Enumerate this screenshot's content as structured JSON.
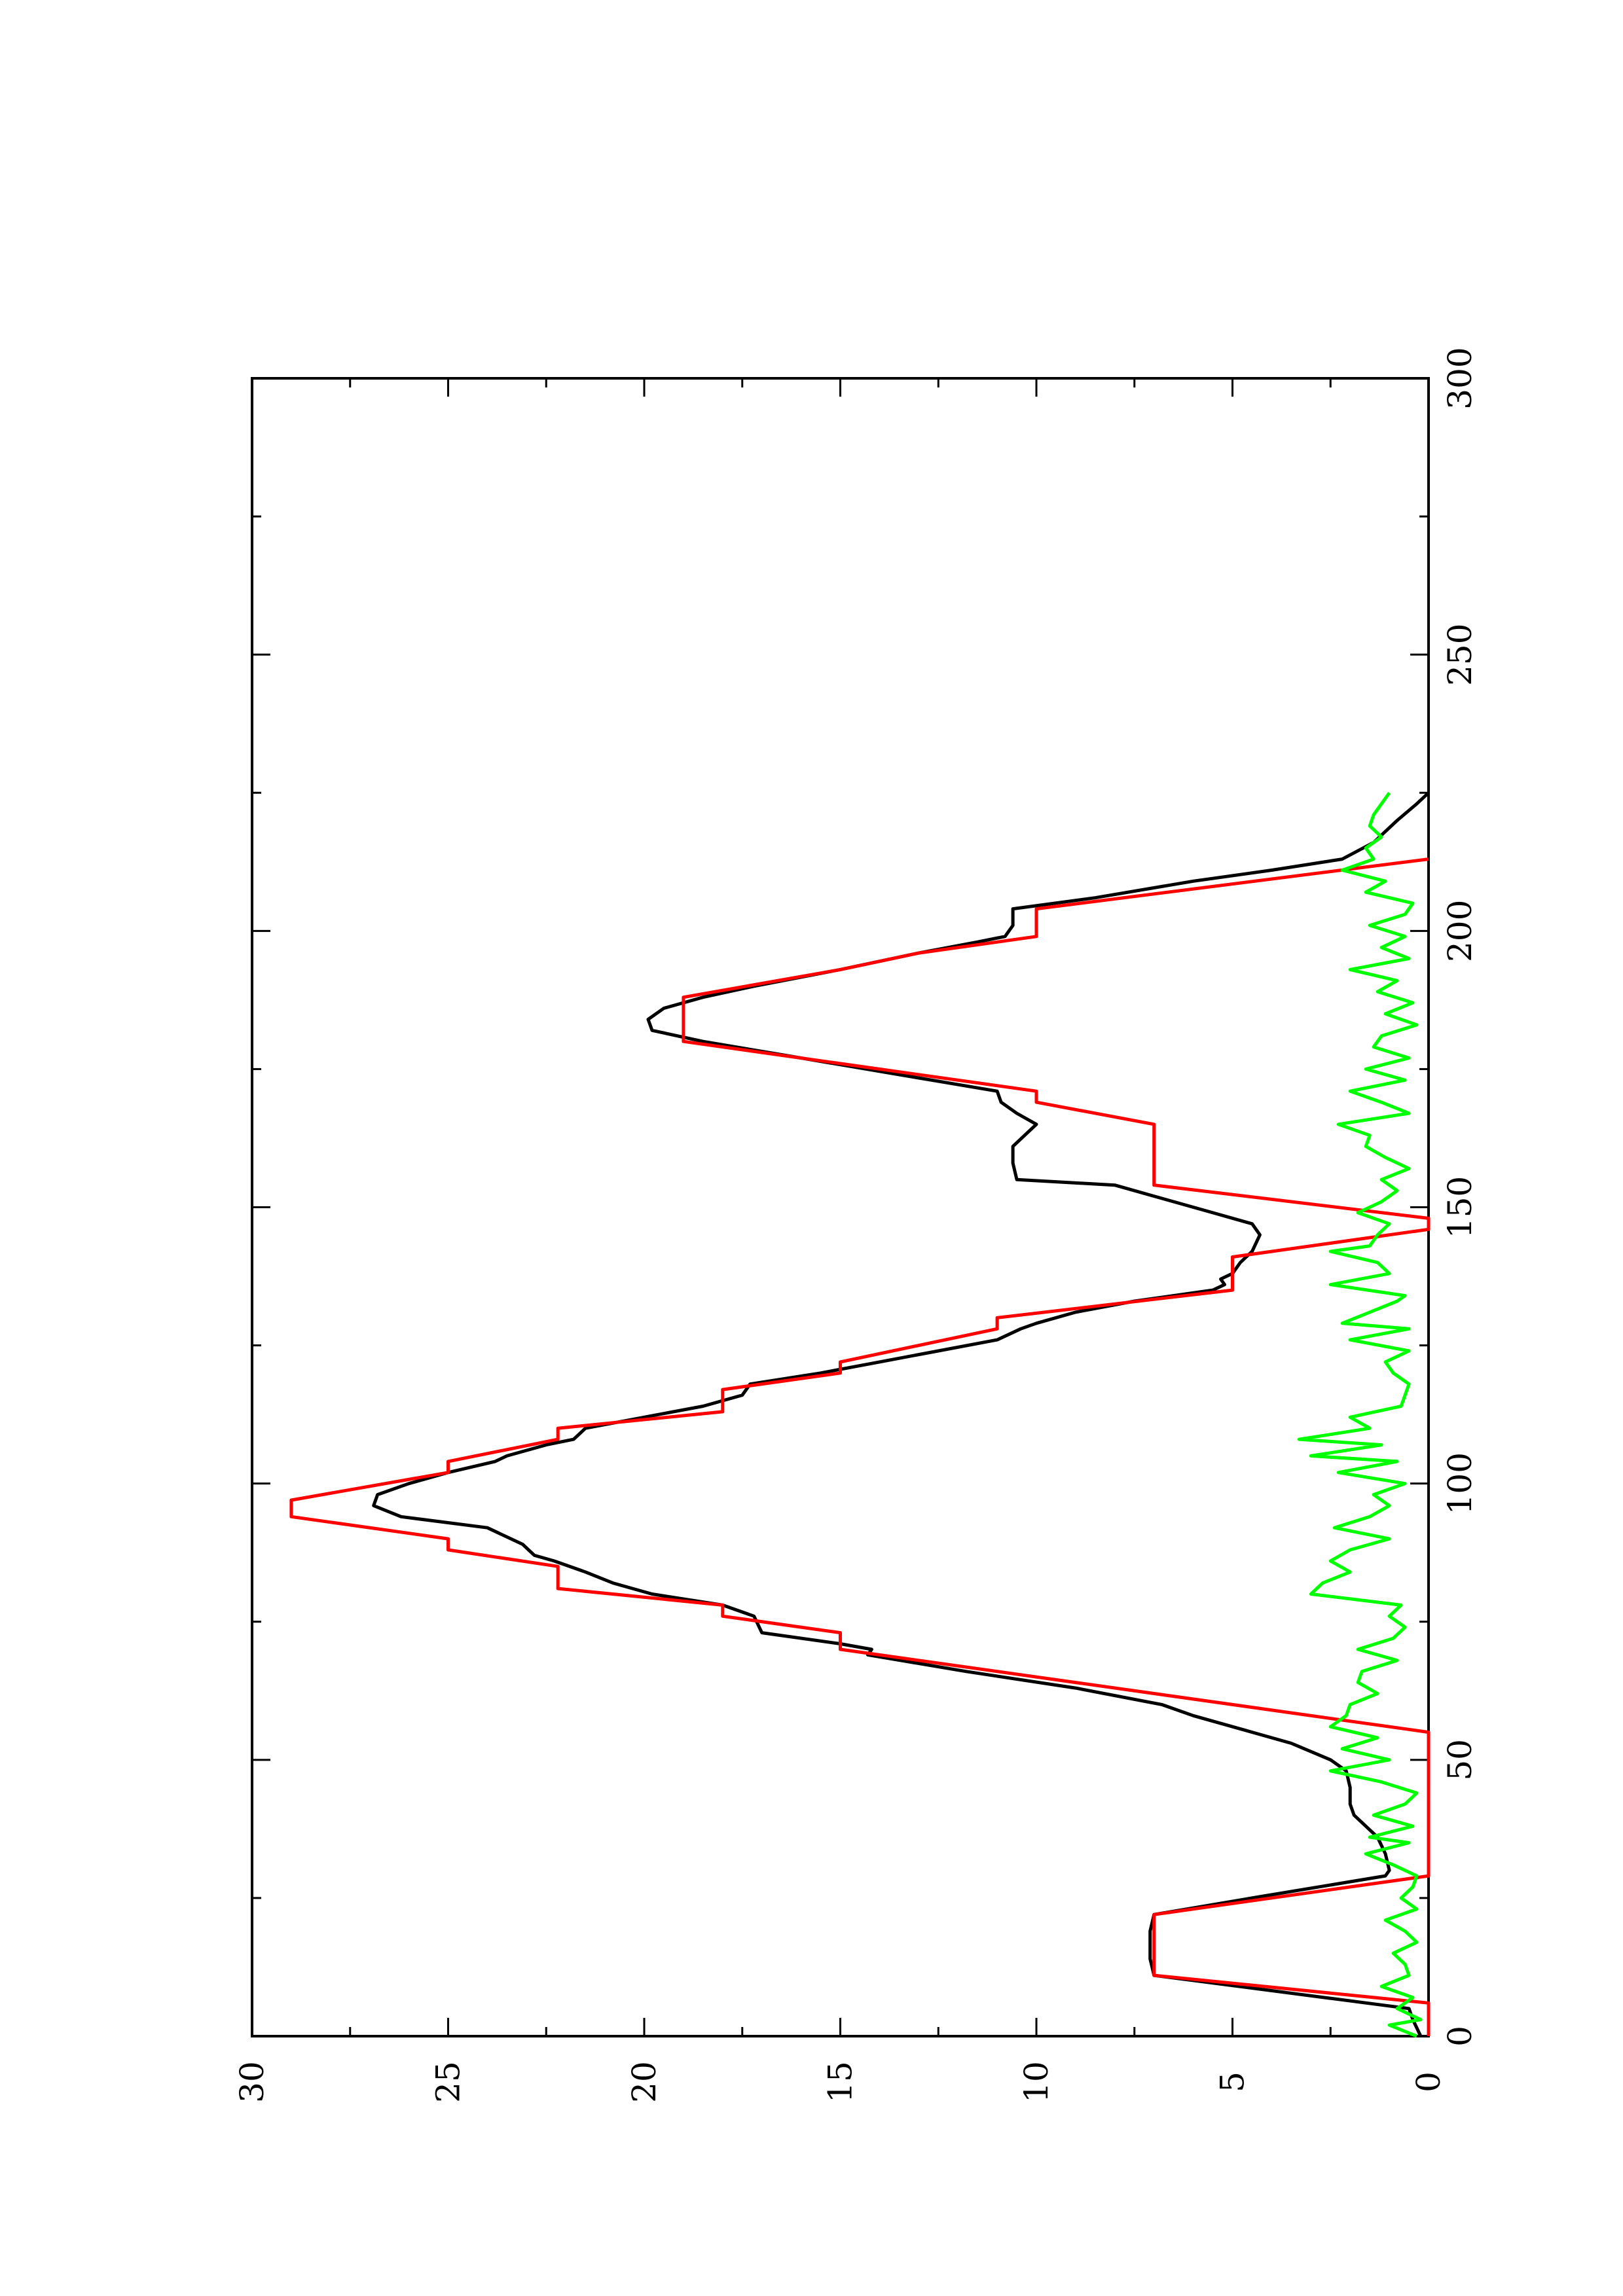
{
  "chart_data": {
    "type": "line",
    "orientation": "rotated-90-counterclockwise",
    "title": "",
    "xlabel": "",
    "ylabel": "",
    "xlim": [
      0,
      300
    ],
    "ylim": [
      0,
      30
    ],
    "x_ticks": [
      0,
      50,
      100,
      150,
      200,
      250,
      300
    ],
    "y_ticks": [
      0,
      5,
      10,
      15,
      20,
      25,
      30
    ],
    "x_tick_labels": [
      "0",
      "50",
      "100",
      "150",
      "200",
      "250",
      "300"
    ],
    "y_tick_labels": [
      "0",
      "5",
      "10",
      "15",
      "20",
      "25",
      "30"
    ],
    "grid": false,
    "legend": "none",
    "series": [
      {
        "color": "#000000",
        "points": [
          [
            0,
            0.2
          ],
          [
            3,
            0.4
          ],
          [
            5,
            0.5
          ],
          [
            11,
            7.0
          ],
          [
            14,
            7.1
          ],
          [
            19,
            7.1
          ],
          [
            22,
            7.0
          ],
          [
            25,
            4.5
          ],
          [
            29,
            1.1
          ],
          [
            30,
            1.0
          ],
          [
            33,
            1.1
          ],
          [
            36,
            1.3
          ],
          [
            38,
            1.6
          ],
          [
            40,
            1.9
          ],
          [
            42,
            2.0
          ],
          [
            45,
            2.0
          ],
          [
            48,
            2.1
          ],
          [
            50,
            2.5
          ],
          [
            53,
            3.5
          ],
          [
            55,
            4.5
          ],
          [
            58,
            6.0
          ],
          [
            60,
            6.8
          ],
          [
            63,
            9.0
          ],
          [
            66,
            11.8
          ],
          [
            69,
            14.3
          ],
          [
            70,
            14.2
          ],
          [
            71,
            15.0
          ],
          [
            73,
            17.0
          ],
          [
            76,
            17.2
          ],
          [
            78,
            18.0
          ],
          [
            80,
            19.8
          ],
          [
            82,
            20.8
          ],
          [
            84,
            21.5
          ],
          [
            86,
            22.3
          ],
          [
            87,
            22.8
          ],
          [
            89,
            23.1
          ],
          [
            92,
            24.0
          ],
          [
            94,
            26.2
          ],
          [
            96,
            26.9
          ],
          [
            98,
            26.8
          ],
          [
            100,
            26.0
          ],
          [
            102,
            25.0
          ],
          [
            104,
            23.8
          ],
          [
            105,
            23.5
          ],
          [
            106,
            23.0
          ],
          [
            107,
            22.5
          ],
          [
            108,
            21.8
          ],
          [
            110,
            21.5
          ],
          [
            112,
            20.0
          ],
          [
            114,
            18.5
          ],
          [
            116,
            17.5
          ],
          [
            118,
            17.3
          ],
          [
            120,
            15.5
          ],
          [
            122,
            14.0
          ],
          [
            124,
            12.5
          ],
          [
            126,
            11.0
          ],
          [
            128,
            10.4
          ],
          [
            129,
            10.0
          ],
          [
            131,
            9.0
          ],
          [
            133,
            7.5
          ],
          [
            135,
            5.5
          ],
          [
            136,
            5.2
          ],
          [
            137,
            5.3
          ],
          [
            138,
            5.0
          ],
          [
            140,
            4.8
          ],
          [
            142,
            4.5
          ],
          [
            145,
            4.3
          ],
          [
            147,
            4.5
          ],
          [
            149,
            5.5
          ],
          [
            152,
            7.0
          ],
          [
            154,
            8.0
          ],
          [
            155,
            10.5
          ],
          [
            158,
            10.6
          ],
          [
            161,
            10.6
          ],
          [
            163,
            10.3
          ],
          [
            165,
            10.0
          ],
          [
            167,
            10.5
          ],
          [
            169,
            10.9
          ],
          [
            171,
            11.0
          ],
          [
            174,
            13.5
          ],
          [
            177,
            16.0
          ],
          [
            180,
            18.5
          ],
          [
            182,
            19.8
          ],
          [
            184,
            19.9
          ],
          [
            186,
            19.5
          ],
          [
            188,
            18.5
          ],
          [
            190,
            17.2
          ],
          [
            193,
            15.0
          ],
          [
            196,
            13.0
          ],
          [
            198,
            11.5
          ],
          [
            199,
            10.8
          ],
          [
            201,
            10.6
          ],
          [
            204,
            10.6
          ],
          [
            206,
            8.5
          ],
          [
            209,
            6.0
          ],
          [
            211,
            4.0
          ],
          [
            213,
            2.2
          ],
          [
            216,
            1.4
          ],
          [
            220,
            0.8
          ],
          [
            223,
            0.3
          ],
          [
            225,
            0.0
          ]
        ]
      },
      {
        "color": "#ff0000",
        "points": [
          [
            0,
            0
          ],
          [
            6,
            0
          ],
          [
            11,
            7.0
          ],
          [
            22,
            7.0
          ],
          [
            29,
            0
          ],
          [
            55,
            0
          ],
          [
            70,
            15.0
          ],
          [
            73,
            15.0
          ],
          [
            76,
            18.0
          ],
          [
            78,
            18.0
          ],
          [
            81,
            22.2
          ],
          [
            85,
            22.2
          ],
          [
            88,
            25.0
          ],
          [
            90,
            25.0
          ],
          [
            94,
            29.0
          ],
          [
            97,
            29.0
          ],
          [
            102,
            25.0
          ],
          [
            104,
            25.0
          ],
          [
            108,
            22.2
          ],
          [
            110,
            22.2
          ],
          [
            113,
            18.0
          ],
          [
            114,
            18.0
          ],
          [
            117,
            18.0
          ],
          [
            120,
            15.0
          ],
          [
            122,
            15.0
          ],
          [
            128,
            11.0
          ],
          [
            130,
            11.0
          ],
          [
            135,
            5.0
          ],
          [
            137,
            5.0
          ],
          [
            141,
            5.0
          ],
          [
            146,
            0.0
          ],
          [
            148,
            0.0
          ],
          [
            154,
            7.0
          ],
          [
            165,
            7.0
          ],
          [
            169,
            10.0
          ],
          [
            171,
            10.0
          ],
          [
            180,
            19.0
          ],
          [
            188,
            19.0
          ],
          [
            193,
            15.0
          ],
          [
            196,
            13.0
          ],
          [
            199,
            10.0
          ],
          [
            204,
            10.0
          ],
          [
            213,
            0.0
          ]
        ]
      },
      {
        "color": "#00ff00",
        "points": [
          [
            0,
            0.3
          ],
          [
            2,
            1.0
          ],
          [
            3,
            0.2
          ],
          [
            5,
            0.8
          ],
          [
            7,
            0.4
          ],
          [
            9,
            1.2
          ],
          [
            11,
            0.5
          ],
          [
            13,
            0.6
          ],
          [
            15,
            0.9
          ],
          [
            17,
            0.3
          ],
          [
            19,
            0.6
          ],
          [
            21,
            1.1
          ],
          [
            23,
            0.3
          ],
          [
            25,
            0.7
          ],
          [
            27,
            0.4
          ],
          [
            29,
            0.3
          ],
          [
            31,
            0.9
          ],
          [
            33,
            1.6
          ],
          [
            35,
            0.5
          ],
          [
            36,
            1.5
          ],
          [
            38,
            0.4
          ],
          [
            40,
            1.4
          ],
          [
            42,
            0.6
          ],
          [
            44,
            0.3
          ],
          [
            46,
            1.2
          ],
          [
            48,
            2.5
          ],
          [
            50,
            1.0
          ],
          [
            52,
            2.2
          ],
          [
            54,
            1.3
          ],
          [
            56,
            2.5
          ],
          [
            58,
            2.1
          ],
          [
            60,
            2.0
          ],
          [
            62,
            1.3
          ],
          [
            64,
            1.8
          ],
          [
            66,
            1.7
          ],
          [
            68,
            0.8
          ],
          [
            70,
            1.8
          ],
          [
            72,
            0.9
          ],
          [
            74,
            0.6
          ],
          [
            76,
            1.0
          ],
          [
            78,
            0.7
          ],
          [
            80,
            3.0
          ],
          [
            82,
            2.7
          ],
          [
            84,
            2.0
          ],
          [
            86,
            2.5
          ],
          [
            88,
            2.0
          ],
          [
            90,
            1.0
          ],
          [
            92,
            2.4
          ],
          [
            94,
            1.5
          ],
          [
            96,
            1.0
          ],
          [
            98,
            1.4
          ],
          [
            100,
            0.6
          ],
          [
            102,
            2.3
          ],
          [
            104,
            0.8
          ],
          [
            105,
            3.0
          ],
          [
            107,
            1.2
          ],
          [
            108,
            3.3
          ],
          [
            110,
            1.5
          ],
          [
            112,
            2.0
          ],
          [
            114,
            0.7
          ],
          [
            116,
            0.6
          ],
          [
            118,
            0.5
          ],
          [
            120,
            0.9
          ],
          [
            122,
            1.1
          ],
          [
            124,
            0.5
          ],
          [
            126,
            2.0
          ],
          [
            128,
            0.5
          ],
          [
            129,
            2.2
          ],
          [
            131,
            1.5
          ],
          [
            133,
            0.8
          ],
          [
            134,
            0.6
          ],
          [
            136,
            2.5
          ],
          [
            138,
            1.0
          ],
          [
            140,
            1.3
          ],
          [
            142,
            2.5
          ],
          [
            143,
            1.5
          ],
          [
            145,
            1.3
          ],
          [
            147,
            1.0
          ],
          [
            149,
            1.8
          ],
          [
            151,
            1.2
          ],
          [
            153,
            0.8
          ],
          [
            155,
            1.2
          ],
          [
            157,
            0.5
          ],
          [
            159,
            1.1
          ],
          [
            161,
            1.6
          ],
          [
            163,
            1.5
          ],
          [
            165,
            2.3
          ],
          [
            167,
            0.5
          ],
          [
            169,
            1.2
          ],
          [
            171,
            2.0
          ],
          [
            173,
            0.6
          ],
          [
            175,
            1.6
          ],
          [
            177,
            0.5
          ],
          [
            179,
            1.4
          ],
          [
            181,
            1.2
          ],
          [
            183,
            0.3
          ],
          [
            185,
            1.1
          ],
          [
            187,
            0.4
          ],
          [
            189,
            1.3
          ],
          [
            191,
            0.8
          ],
          [
            193,
            2.0
          ],
          [
            195,
            0.5
          ],
          [
            197,
            1.2
          ],
          [
            199,
            0.6
          ],
          [
            201,
            1.5
          ],
          [
            203,
            0.6
          ],
          [
            205,
            0.4
          ],
          [
            207,
            1.6
          ],
          [
            209,
            1.1
          ],
          [
            211,
            2.2
          ],
          [
            213,
            1.4
          ],
          [
            215,
            1.6
          ],
          [
            217,
            1.2
          ],
          [
            219,
            1.5
          ],
          [
            221,
            1.4
          ],
          [
            223,
            1.2
          ],
          [
            225,
            1.0
          ]
        ]
      }
    ]
  }
}
